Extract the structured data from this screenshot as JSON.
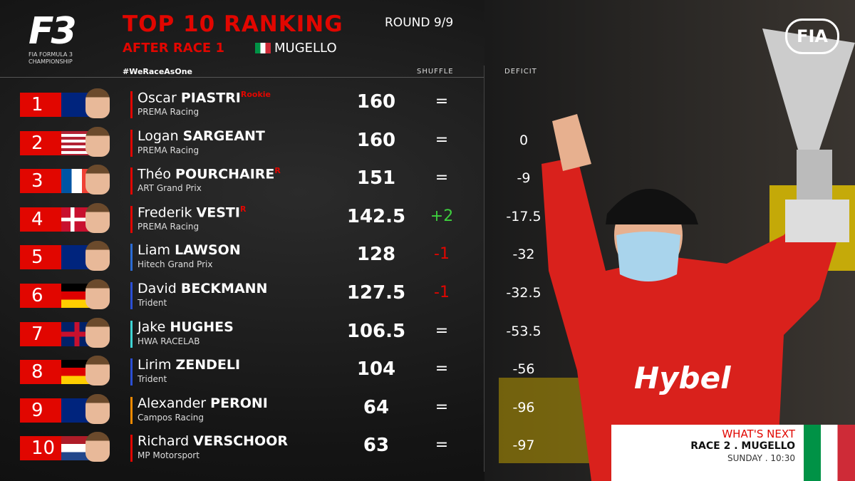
{
  "logo": {
    "mark": "F3",
    "name": "FIA FORMULA 3 CHAMPIONSHIP"
  },
  "header": {
    "title": "TOP 10 RANKING",
    "round": "ROUND 9/9",
    "subtitle": "AFTER RACE 1",
    "venue": "MUGELLO",
    "hashtag": "#WeRaceAsOne"
  },
  "fia": "FIA",
  "table": {
    "columns": {
      "shuffle": "SHUFFLE",
      "deficit": "DEFICIT"
    },
    "rows": [
      {
        "position": "1",
        "first": "Oscar",
        "last": "PIASTRI",
        "tag": "Rookie",
        "team": "PREMA Racing",
        "points": 160,
        "shuffle": "="
      },
      {
        "position": "2",
        "first": "Logan",
        "last": "SARGEANT",
        "team": "PREMA Racing",
        "points": 160,
        "shuffle": "=",
        "deficit": 0
      },
      {
        "position": "3",
        "first": "Théo",
        "last": "POURCHAIRE",
        "tag": "R",
        "team": "ART Grand Prix",
        "points": 151,
        "shuffle": "=",
        "deficit": -9
      },
      {
        "position": "4",
        "first": "Frederik",
        "last": "VESTI",
        "tag": "R",
        "team": "PREMA Racing",
        "points": 142.5,
        "shuffle": "+2",
        "deficit": -17.5
      },
      {
        "position": "5",
        "first": "Liam",
        "last": "LAWSON",
        "team": "Hitech Grand Prix",
        "points": 128,
        "shuffle": "-1",
        "deficit": -32
      },
      {
        "position": "6",
        "first": "David",
        "last": "BECKMANN",
        "team": "Trident",
        "points": 127.5,
        "shuffle": "-1",
        "deficit": -32.5
      },
      {
        "position": "7",
        "first": "Jake",
        "last": "HUGHES",
        "team": "HWA RACELAB",
        "points": 106.5,
        "shuffle": "=",
        "deficit": -53.5
      },
      {
        "position": "8",
        "first": "Lirim",
        "last": "ZENDELI",
        "team": "Trident",
        "points": 104,
        "shuffle": "=",
        "deficit": -56
      },
      {
        "position": "9",
        "first": "Alexander",
        "last": "PERONI",
        "team": "Campos Racing",
        "points": 64,
        "shuffle": "=",
        "deficit": -96
      },
      {
        "position": "10",
        "first": "Richard",
        "last": "VERSCHOOR",
        "team": "MP Motorsport",
        "points": 63,
        "shuffle": "=",
        "deficit": -97
      }
    ]
  },
  "next": {
    "title": "WHAT'S NEXT",
    "race": "RACE 2 . MUGELLO",
    "time": "SUNDAY . 10:30"
  }
}
